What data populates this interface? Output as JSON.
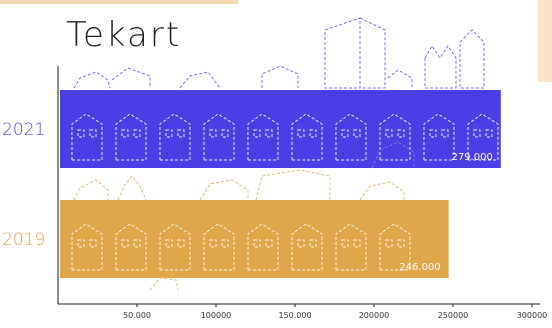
{
  "logo": {
    "text": "Tekart"
  },
  "colors": {
    "y2021": "#4a3ee6",
    "y2019": "#e0a64a",
    "frame": "#f5d9b0"
  },
  "chart_data": {
    "type": "bar",
    "orientation": "horizontal",
    "title": "",
    "xlabel": "",
    "ylabel": "",
    "categories": [
      "2021",
      "2019"
    ],
    "values": [
      279000,
      246000
    ],
    "value_labels": [
      "279.000",
      "246.000"
    ],
    "xlim": [
      0,
      300000
    ],
    "x_ticks": [
      {
        "value": 50000,
        "label": "50.000"
      },
      {
        "value": 100000,
        "label": "100000"
      },
      {
        "value": 150000,
        "label": "150.000"
      },
      {
        "value": 200000,
        "label": "200000"
      },
      {
        "value": 250000,
        "label": "250000"
      },
      {
        "value": 300000,
        "label": "300000"
      }
    ],
    "grid": false,
    "legend": "none"
  }
}
